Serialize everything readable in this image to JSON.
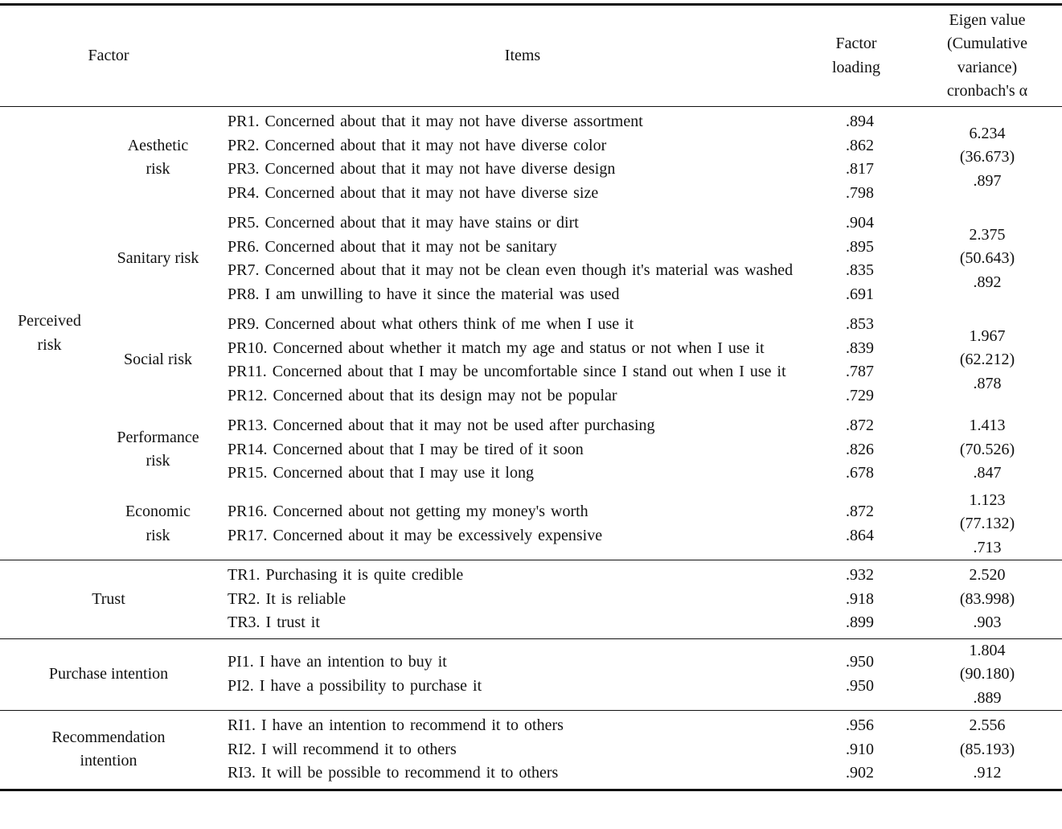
{
  "header": {
    "factor": "Factor",
    "items": "Items",
    "factor_loading": "Factor loading",
    "eigen": [
      "Eigen value",
      "(Cumulative",
      "variance)",
      "cronbach's α"
    ]
  },
  "groups": [
    {
      "factor": "Perceived risk",
      "subgroups": [
        {
          "name": "Aesthetic risk",
          "items": [
            {
              "text": "PR1. Concerned about that it may not have diverse assortment",
              "loading": ".894"
            },
            {
              "text": "PR2. Concerned about that it may not have diverse color",
              "loading": ".862"
            },
            {
              "text": "PR3. Concerned about that it may not have diverse design",
              "loading": ".817"
            },
            {
              "text": "PR4. Concerned about that it may not have diverse size",
              "loading": ".798"
            }
          ],
          "eigen": [
            "6.234",
            "(36.673)",
            ".897"
          ]
        },
        {
          "name": "Sanitary risk",
          "items": [
            {
              "text": "PR5. Concerned about that it may have stains or dirt",
              "loading": ".904"
            },
            {
              "text": "PR6. Concerned about that it may not be sanitary",
              "loading": ".895"
            },
            {
              "text": "PR7. Concerned about that it may not be clean even though it's material was washed",
              "loading": ".835"
            },
            {
              "text": "PR8. I am unwilling to have it since the material was used",
              "loading": ".691"
            }
          ],
          "eigen": [
            "2.375",
            "(50.643)",
            ".892"
          ]
        },
        {
          "name": "Social risk",
          "items": [
            {
              "text": "PR9. Concerned about what others think of me when I use it",
              "loading": ".853"
            },
            {
              "text": "PR10. Concerned about whether it match my age and status or not when I use it",
              "loading": ".839"
            },
            {
              "text": "PR11. Concerned about that I may be uncomfortable since I stand out when I use it",
              "loading": ".787"
            },
            {
              "text": "PR12. Concerned about that its design may not be popular",
              "loading": ".729"
            }
          ],
          "eigen": [
            "1.967",
            "(62.212)",
            ".878"
          ]
        },
        {
          "name": "Performance risk",
          "items": [
            {
              "text": "PR13. Concerned about that it may not be used after purchasing",
              "loading": ".872"
            },
            {
              "text": "PR14. Concerned about that I may be tired of it soon",
              "loading": ".826"
            },
            {
              "text": "PR15. Concerned about that I may use it long",
              "loading": ".678"
            }
          ],
          "eigen": [
            "1.413",
            "(70.526)",
            ".847"
          ]
        },
        {
          "name": "Economic risk",
          "items": [
            {
              "text": "PR16. Concerned about not getting my money's worth",
              "loading": ".872"
            },
            {
              "text": "PR17. Concerned about it may be excessively expensive",
              "loading": ".864"
            }
          ],
          "eigen": [
            "1.123",
            "(77.132)",
            ".713"
          ]
        }
      ]
    },
    {
      "factor": "Trust",
      "items": [
        {
          "text": "TR1. Purchasing it is quite credible",
          "loading": ".932"
        },
        {
          "text": "TR2. It is reliable",
          "loading": ".918"
        },
        {
          "text": "TR3. I trust it",
          "loading": ".899"
        }
      ],
      "eigen": [
        "2.520",
        "(83.998)",
        ".903"
      ]
    },
    {
      "factor": "Purchase intention",
      "items": [
        {
          "text": "PI1. I have an intention to buy it",
          "loading": ".950"
        },
        {
          "text": "PI2. I have a possibility to purchase it",
          "loading": ".950"
        }
      ],
      "eigen": [
        "1.804",
        "(90.180)",
        ".889"
      ]
    },
    {
      "factor": "Recommendation intention",
      "items": [
        {
          "text": "RI1. I have an intention to recommend it to others",
          "loading": ".956"
        },
        {
          "text": "RI2. I will recommend it to others",
          "loading": ".910"
        },
        {
          "text": "RI3. It will be possible to recommend it to others",
          "loading": ".902"
        }
      ],
      "eigen": [
        "2.556",
        "(85.193)",
        ".912"
      ]
    }
  ]
}
